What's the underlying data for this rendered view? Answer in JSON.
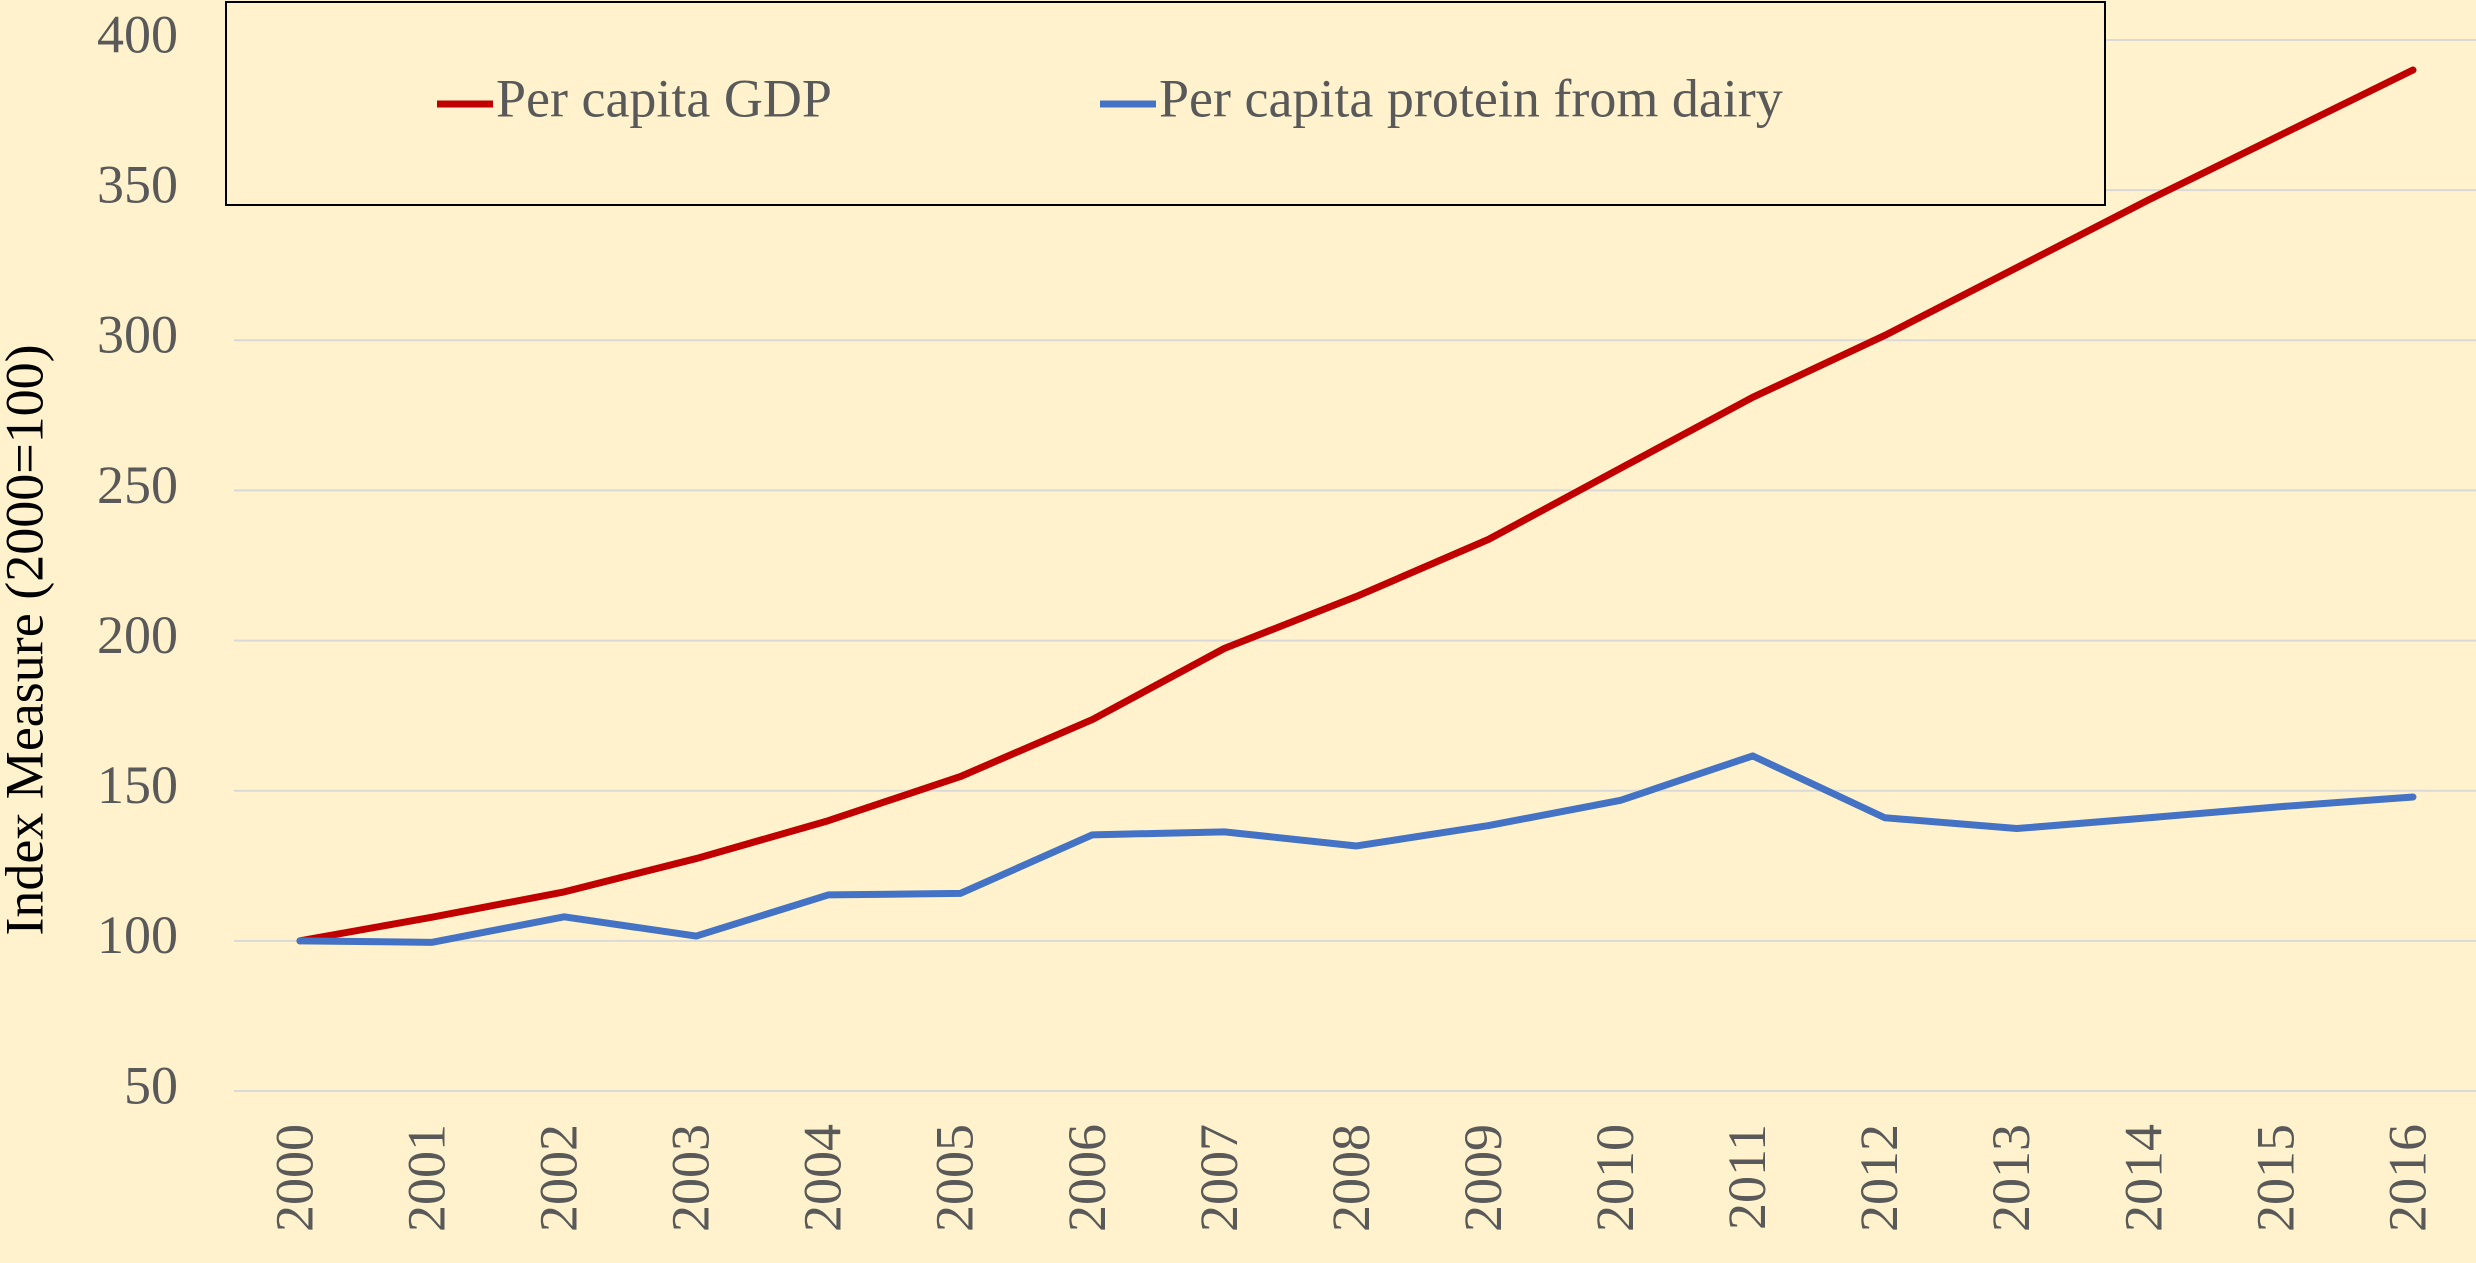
{
  "chart_data": {
    "type": "line",
    "y_axis_label": "Index Measure (2000=100)",
    "categories": [
      "2000",
      "2001",
      "2002",
      "2003",
      "2004",
      "2005",
      "2006",
      "2007",
      "2008",
      "2009",
      "2010",
      "2011",
      "2012",
      "2013",
      "2014",
      "2015",
      "2016"
    ],
    "series": [
      {
        "name": "Per capita GDP",
        "color": "#C00000",
        "values": [
          100,
          107.9,
          116.3,
          127.4,
          140,
          154.7,
          173.7,
          197.4,
          214.7,
          233.7,
          257.4,
          281,
          301.6,
          324.2,
          346.8,
          368.4,
          390
        ]
      },
      {
        "name": "Per capita protein from dairy",
        "color": "#4472C4",
        "values": [
          100,
          99.5,
          108,
          101.6,
          115.3,
          115.8,
          135.3,
          136.3,
          131.6,
          138.4,
          146.8,
          161.6,
          141,
          137.4,
          141,
          144.7,
          147.9
        ]
      }
    ],
    "ylim": [
      50,
      400
    ],
    "yticks": [
      50,
      100,
      150,
      200,
      250,
      300,
      350,
      400
    ],
    "grid": true,
    "legend": "top"
  }
}
